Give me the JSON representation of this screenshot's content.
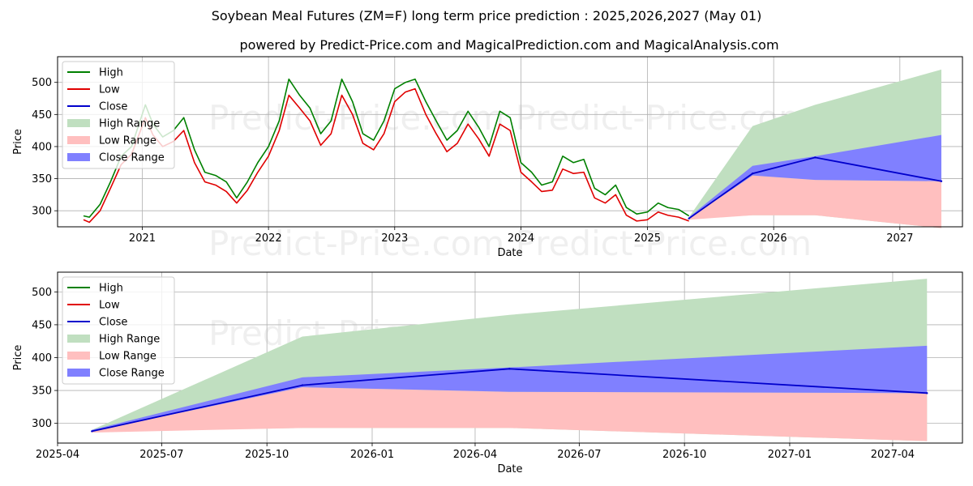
{
  "title": "Soybean Meal Futures (ZM=F) long term price prediction : 2025,2026,2027 (May 01)",
  "subtitle": "powered by Predict-Price.com and MagicalPrediction.com and MagicalAnalysis.com",
  "watermark": "Predict-Price.com",
  "colors": {
    "high": "#008000",
    "low": "#e00000",
    "close": "#0000cc",
    "high_range": "#c0dfc0",
    "low_range": "#ffbfbf",
    "close_range": "#8080ff"
  },
  "legend": {
    "high": "High",
    "low": "Low",
    "close": "Close",
    "high_range": "High Range",
    "low_range": "Low Range",
    "close_range": "Close Range"
  },
  "chart_data": [
    {
      "type": "line",
      "xlabel": "Date",
      "ylabel": "Price",
      "xlim": [
        "2020-05-01",
        "2027-07-01"
      ],
      "ylim": [
        275,
        540
      ],
      "x_ticks": [
        "2021",
        "2022",
        "2023",
        "2024",
        "2025",
        "2026",
        "2027"
      ],
      "y_ticks": [
        300,
        350,
        400,
        450,
        500
      ],
      "grid": true,
      "legend_position": "top-left",
      "history": {
        "dates": [
          "2020-07-15",
          "2020-08-01",
          "2020-09-01",
          "2020-10-01",
          "2020-11-01",
          "2020-12-01",
          "2021-01-10",
          "2021-02-01",
          "2021-03-01",
          "2021-04-01",
          "2021-05-01",
          "2021-06-01",
          "2021-07-01",
          "2021-08-01",
          "2021-09-01",
          "2021-10-01",
          "2021-11-01",
          "2021-12-01",
          "2022-01-01",
          "2022-02-01",
          "2022-03-01",
          "2022-04-01",
          "2022-05-01",
          "2022-06-01",
          "2022-07-01",
          "2022-08-01",
          "2022-09-01",
          "2022-10-01",
          "2022-11-01",
          "2022-12-01",
          "2023-01-01",
          "2023-02-01",
          "2023-03-01",
          "2023-04-01",
          "2023-05-01",
          "2023-06-01",
          "2023-07-01",
          "2023-08-01",
          "2023-09-01",
          "2023-10-01",
          "2023-11-01",
          "2023-12-01",
          "2024-01-01",
          "2024-02-01",
          "2024-03-01",
          "2024-04-01",
          "2024-05-01",
          "2024-06-01",
          "2024-07-01",
          "2024-08-01",
          "2024-09-01",
          "2024-10-01",
          "2024-11-01",
          "2024-12-01",
          "2025-01-01",
          "2025-02-01",
          "2025-03-01",
          "2025-04-01",
          "2025-05-01"
        ],
        "high": [
          292,
          290,
          310,
          345,
          385,
          400,
          465,
          435,
          415,
          425,
          445,
          395,
          360,
          355,
          345,
          320,
          345,
          375,
          400,
          440,
          505,
          480,
          460,
          420,
          440,
          505,
          470,
          420,
          410,
          440,
          490,
          500,
          505,
          470,
          440,
          410,
          425,
          455,
          430,
          400,
          455,
          445,
          375,
          360,
          340,
          345,
          385,
          375,
          380,
          335,
          325,
          340,
          305,
          295,
          298,
          312,
          305,
          302,
          292
        ],
        "low": [
          286,
          282,
          300,
          335,
          372,
          388,
          445,
          418,
          400,
          408,
          425,
          375,
          345,
          340,
          330,
          312,
          332,
          360,
          385,
          425,
          480,
          460,
          440,
          402,
          420,
          480,
          450,
          405,
          395,
          420,
          470,
          485,
          490,
          450,
          420,
          392,
          405,
          435,
          412,
          385,
          435,
          425,
          360,
          345,
          330,
          332,
          365,
          358,
          360,
          320,
          312,
          325,
          293,
          284,
          286,
          298,
          293,
          290,
          284
        ],
        "close": [
          289,
          286,
          305,
          340,
          378,
          394,
          455,
          426,
          408,
          416,
          435,
          385,
          352,
          348,
          338,
          316,
          338,
          367,
          392,
          432,
          492,
          470,
          450,
          411,
          430,
          492,
          460,
          412,
          402,
          430,
          480,
          492,
          497,
          460,
          430,
          401,
          415,
          445,
          421,
          392,
          445,
          435,
          367,
          352,
          335,
          338,
          375,
          366,
          370,
          327,
          318,
          332,
          299,
          289,
          292,
          305,
          299,
          296,
          288
        ]
      },
      "forecast": {
        "dates": [
          "2025-05-01",
          "2025-11-01",
          "2026-05-01",
          "2027-05-01"
        ],
        "close": [
          288,
          358,
          383,
          346
        ],
        "high_range": [
          [
            288,
            290
          ],
          [
            293,
            432
          ],
          [
            293,
            465
          ],
          [
            273,
            520
          ]
        ],
        "low_range": [
          [
            286,
            288
          ],
          [
            293,
            355
          ],
          [
            293,
            348
          ],
          [
            273,
            346
          ]
        ],
        "close_range": [
          [
            288,
            290
          ],
          [
            355,
            370
          ],
          [
            348,
            385
          ],
          [
            346,
            418
          ]
        ]
      }
    },
    {
      "type": "area",
      "xlabel": "Date",
      "ylabel": "Price",
      "xlim": [
        "2025-04-01",
        "2027-06-01"
      ],
      "ylim": [
        270,
        530
      ],
      "x_ticks": [
        "2025-04",
        "2025-07",
        "2025-10",
        "2026-01",
        "2026-04",
        "2026-07",
        "2026-10",
        "2027-01",
        "2027-04"
      ],
      "y_ticks": [
        300,
        350,
        400,
        450,
        500
      ],
      "grid": true,
      "legend_position": "top-left",
      "forecast": {
        "dates": [
          "2025-05-01",
          "2025-11-01",
          "2026-05-01",
          "2027-05-01"
        ],
        "close": [
          288,
          358,
          383,
          346
        ],
        "high_range": [
          [
            288,
            290
          ],
          [
            293,
            432
          ],
          [
            293,
            465
          ],
          [
            273,
            520
          ]
        ],
        "low_range": [
          [
            286,
            288
          ],
          [
            293,
            355
          ],
          [
            293,
            348
          ],
          [
            273,
            346
          ]
        ],
        "close_range": [
          [
            288,
            290
          ],
          [
            355,
            370
          ],
          [
            348,
            385
          ],
          [
            346,
            418
          ]
        ]
      }
    }
  ]
}
